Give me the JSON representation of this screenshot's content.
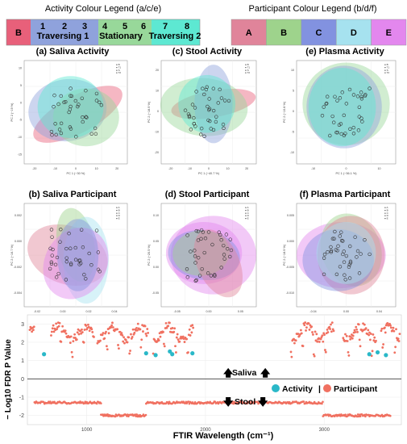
{
  "legends": {
    "activity": {
      "title": "Activity Colour Legend (a/c/e)",
      "cells": [
        {
          "label": "B",
          "color": "#e8607a"
        },
        {
          "label": "1",
          "color": "#8fa2dc"
        },
        {
          "label": "2",
          "color": "#8fa2dc"
        },
        {
          "label": "3",
          "color": "#8fa2dc"
        },
        {
          "label": "4",
          "color": "#98d89a"
        },
        {
          "label": "5",
          "color": "#98d89a"
        },
        {
          "label": "6",
          "color": "#98d89a"
        },
        {
          "label": "7",
          "color": "#5de8d2"
        },
        {
          "label": "8",
          "color": "#5de8d2"
        }
      ],
      "groups": [
        "Traversing 1",
        "Stationary",
        "Traversing 2"
      ]
    },
    "participant": {
      "title": "Participant Colour Legend (b/d/f)",
      "cells": [
        {
          "label": "A",
          "color": "#e0849a"
        },
        {
          "label": "B",
          "color": "#9ed38c"
        },
        {
          "label": "C",
          "color": "#8292e0"
        },
        {
          "label": "D",
          "color": "#a6e2ef"
        },
        {
          "label": "E",
          "color": "#e387ee"
        }
      ]
    }
  },
  "chart_data": [
    {
      "type": "scatter",
      "panel": "(a)",
      "title": "(a) Saliva Activity",
      "xlabel": "PC 1 (~30 %)",
      "ylabel": "PC 2 (~19 %)",
      "xticks": [
        "-20",
        "-10",
        "0",
        "10",
        "20"
      ],
      "yticks": [
        "10",
        "5",
        "0",
        "-5",
        "-10",
        "-15"
      ],
      "legend_items": [
        "B",
        "T1",
        "S",
        "T2"
      ]
    },
    {
      "type": "scatter",
      "panel": "(c)",
      "title": "(c) Stool Activity",
      "xlabel": "PC 1 (~40.7 %)",
      "ylabel": "PC 2 (~18.9 %)",
      "xticks": [
        "-20",
        "-10",
        "0",
        "10",
        "20"
      ],
      "yticks": [
        "20",
        "10",
        "0",
        "-10",
        "-20"
      ],
      "legend_items": [
        "B",
        "T1",
        "S",
        "T2"
      ]
    },
    {
      "type": "scatter",
      "panel": "(e)",
      "title": "(e) Plasma Activity",
      "xlabel": "PC 1 (~36.1 %)",
      "ylabel": "PC 2 (~10.8 %)",
      "xticks": [
        "-10",
        "0",
        "10"
      ],
      "yticks": [
        "10",
        "5",
        "0",
        "-5",
        "-10"
      ],
      "legend_items": [
        "B",
        "T1",
        "S",
        "T2"
      ]
    },
    {
      "type": "scatter",
      "panel": "(b)",
      "title": "(b) Saliva Participant",
      "xlabel": "PC 1 (~77.2 %)",
      "ylabel": "PC 2 (~16.7 %)",
      "xticks": [
        "-0.02",
        "0.00",
        "0.02",
        "0.04"
      ],
      "yticks": [
        "0.002",
        "0.000",
        "-0.002",
        "-0.004"
      ],
      "legend_items": [
        "A",
        "B",
        "C",
        "D",
        "E"
      ]
    },
    {
      "type": "scatter",
      "panel": "(d)",
      "title": "(d) Stool Participant",
      "xlabel": "PC 1 (~31.7 %)",
      "ylabel": "PC 2 (~20.5 %)",
      "xticks": [
        "-0.05",
        "0.00",
        "0.05"
      ],
      "yticks": [
        "0.10",
        "0.05",
        "0.00",
        "-0.05"
      ],
      "legend_items": [
        "A",
        "B",
        "C",
        "D",
        "E"
      ]
    },
    {
      "type": "scatter",
      "panel": "(f)",
      "title": "(f) Plasma Participant",
      "xlabel": "PC 1 (~36.7 %)",
      "ylabel": "PC 2 (~18.9 %)",
      "xticks": [
        "-0.04",
        "0.00",
        "0.04"
      ],
      "yticks": [
        "0.005",
        "0.000",
        "-0.005",
        "-0.010"
      ],
      "legend_items": [
        "A",
        "B",
        "C",
        "D",
        "E"
      ]
    },
    {
      "type": "scatter",
      "panel": "(g)",
      "xlabel": "FTIR Wavelength (cm⁻¹)",
      "ylabel": "− Log10 FDR P Value",
      "xlim": [
        500,
        3650
      ],
      "ylim": [
        -2.5,
        3.5
      ],
      "yticks": [
        3,
        2,
        1,
        0,
        -1,
        -2
      ],
      "xticks": [
        1000,
        2000,
        3000
      ],
      "annotations": [
        "Saliva",
        "Stool"
      ],
      "legend": [
        "Activity",
        "Participant"
      ],
      "legend_separator": "|",
      "series": [
        {
          "name": "Participant",
          "color": "#f07060",
          "segments": [
            [
              700,
              2.7
            ],
            [
              1015,
              2.9
            ],
            [
              1150,
              2.6
            ],
            [
              1250,
              2.8
            ],
            [
              1400,
              2.5
            ],
            [
              1500,
              2.7
            ],
            [
              2750,
              2.2
            ],
            [
              3150,
              2.4
            ],
            [
              3500,
              2.3
            ]
          ],
          "negative_segments": [
            [
              700,
              -1.2
            ],
            [
              1100,
              -2.0
            ],
            [
              1500,
              -1.3
            ],
            [
              2550,
              -1.2
            ],
            [
              3000,
              -2.0
            ],
            [
              3560,
              -1.6
            ]
          ]
        },
        {
          "name": "Activity",
          "color": "#2ab8c8",
          "points": [
            [
              640,
              1.35
            ],
            [
              1500,
              1.4
            ],
            [
              1580,
              1.3
            ],
            [
              1700,
              1.5
            ],
            [
              1720,
              1.35
            ],
            [
              1890,
              1.4
            ],
            [
              3380,
              1.35
            ],
            [
              3450,
              1.45
            ],
            [
              3520,
              1.3
            ]
          ]
        }
      ]
    }
  ]
}
